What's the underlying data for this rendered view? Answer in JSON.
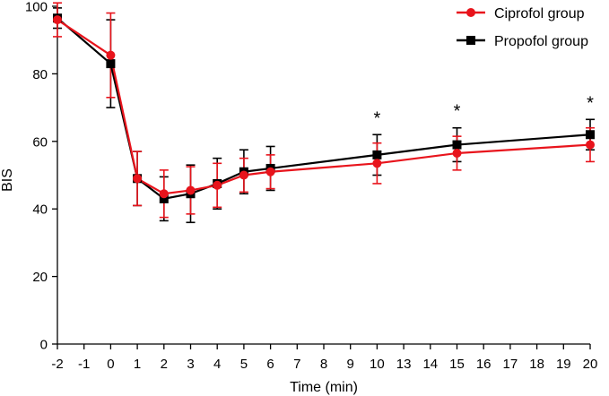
{
  "chart_data": {
    "type": "line",
    "title": "",
    "xlabel": "Time (min)",
    "ylabel": "BIS",
    "ylim": [
      0,
      100
    ],
    "yticks": [
      0,
      20,
      40,
      60,
      80,
      100
    ],
    "x_tick_labels": [
      "-2",
      "-1",
      "0",
      "1",
      "2",
      "3",
      "4",
      "5",
      "6",
      "7",
      "8",
      "9",
      "10",
      "13",
      "14",
      "15",
      "16",
      "17",
      "18",
      "19",
      "20"
    ],
    "series": [
      {
        "name": "Ciprofol group",
        "color": "#e8141c",
        "marker": "circle",
        "x": [
          "-2",
          "0",
          "1",
          "2",
          "3",
          "4",
          "5",
          "6",
          "10",
          "15",
          "20"
        ],
        "values": [
          96.0,
          85.5,
          49.0,
          44.5,
          45.5,
          47.0,
          50.0,
          51.0,
          53.5,
          56.5,
          59.0
        ],
        "error": [
          5.0,
          12.5,
          8.0,
          7.0,
          7.0,
          6.5,
          5.0,
          5.0,
          6.0,
          5.0,
          5.0
        ]
      },
      {
        "name": "Propofol group",
        "color": "#000000",
        "marker": "square",
        "x": [
          "-2",
          "0",
          "1",
          "2",
          "3",
          "4",
          "5",
          "6",
          "10",
          "15",
          "20"
        ],
        "values": [
          96.5,
          83.0,
          49.0,
          43.0,
          44.5,
          47.5,
          51.0,
          52.0,
          56.0,
          59.0,
          62.0
        ],
        "error": [
          3.0,
          13.0,
          8.0,
          6.5,
          8.5,
          7.5,
          6.5,
          6.5,
          6.0,
          5.0,
          4.5
        ]
      }
    ],
    "annotations": [
      {
        "x": "10",
        "text": "*"
      },
      {
        "x": "15",
        "text": "*"
      },
      {
        "x": "20",
        "text": "*"
      }
    ],
    "legend": {
      "position": "top-right",
      "entries": [
        "Ciprofol group",
        "Propofol group"
      ]
    }
  }
}
